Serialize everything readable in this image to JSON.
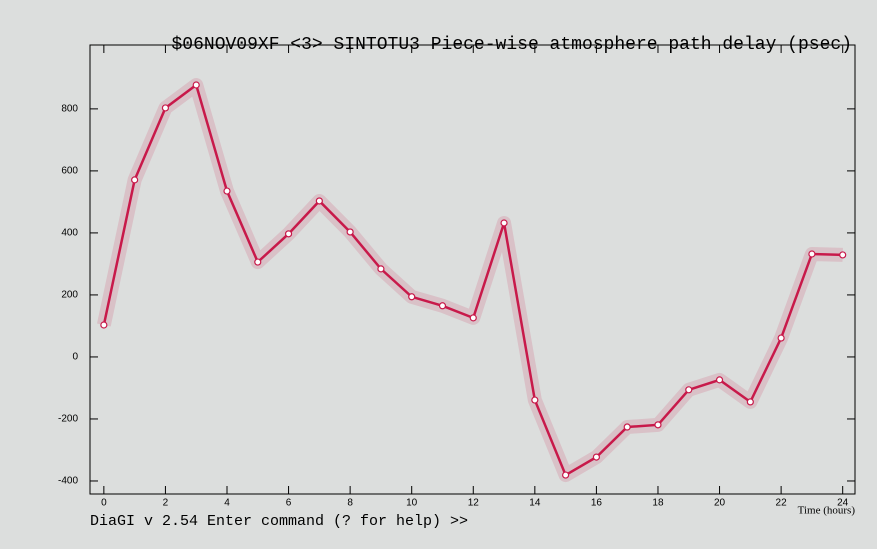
{
  "chart_data": {
    "type": "line",
    "title": "$06NOV09XF <3>   SINTOTU3  Piece-wise atmosphere path delay (psec)",
    "x_label": "Time (hours)",
    "footer": "DiaGI v 2.54  Enter command (? for help) >>",
    "x": [
      0,
      1,
      2,
      3,
      4,
      5,
      6,
      7,
      8,
      9,
      10,
      11,
      12,
      13,
      14,
      15,
      16,
      17,
      18,
      19,
      20,
      21,
      22,
      23,
      24
    ],
    "series": [
      {
        "color": "#c8194a",
        "values": [
          103,
          571,
          803,
          877,
          535,
          306,
          397,
          503,
          403,
          284,
          194,
          165,
          126,
          432,
          -139,
          -381,
          -323,
          -226,
          -219,
          -106,
          -74,
          -145,
          61,
          332,
          329
        ]
      }
    ],
    "xlim": [
      -0.45,
      24.4
    ],
    "ylim": [
      -442,
      1006
    ],
    "xticks": [
      0,
      2,
      4,
      6,
      8,
      10,
      12,
      14,
      16,
      18,
      20,
      22,
      24
    ],
    "yticks": [
      -400,
      -200,
      0,
      200,
      400,
      600,
      800
    ]
  }
}
